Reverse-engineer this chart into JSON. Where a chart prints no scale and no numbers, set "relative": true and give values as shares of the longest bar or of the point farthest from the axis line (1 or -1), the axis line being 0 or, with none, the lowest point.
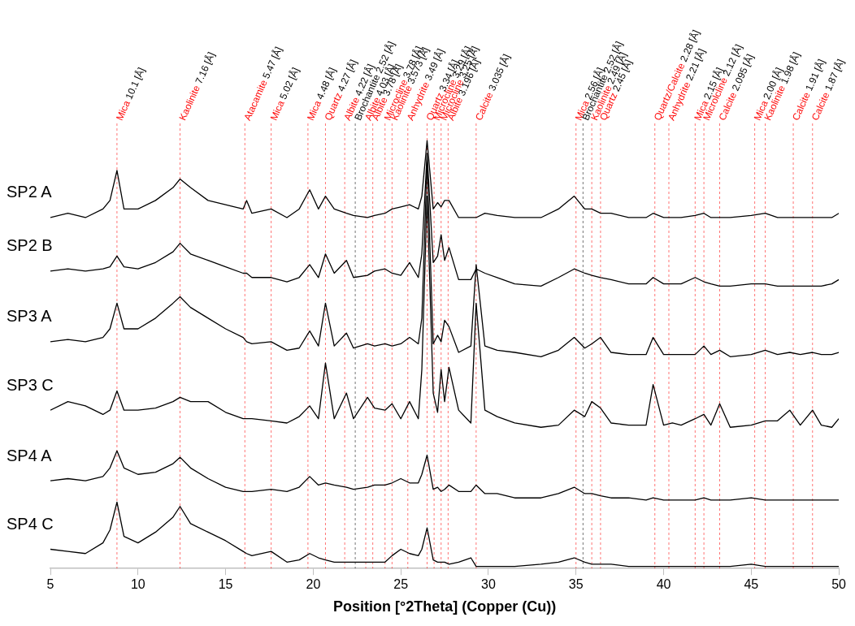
{
  "chart_data": {
    "type": "line",
    "relative": true,
    "xlabel": "Position [°2Theta] (Copper (Cu))",
    "xlim": [
      5,
      50
    ],
    "xticks": [
      5,
      10,
      15,
      20,
      25,
      30,
      35,
      40,
      45,
      50
    ],
    "x": [
      5,
      6,
      7,
      8,
      8.4,
      8.8,
      9.2,
      10,
      11,
      12,
      12.4,
      13,
      14,
      15,
      16,
      16.2,
      16.5,
      17.6,
      18.5,
      19.2,
      19.8,
      20.3,
      20.7,
      21.2,
      21.9,
      22.3,
      23.1,
      23.5,
      24.1,
      24.5,
      25,
      25.5,
      26,
      26.2,
      26.5,
      26.85,
      27.1,
      27.3,
      27.5,
      27.75,
      28.3,
      29,
      29.3,
      29.8,
      30.5,
      31.5,
      33,
      34,
      34.9,
      35.5,
      35.9,
      36.4,
      37,
      38,
      39,
      39.4,
      40,
      40.5,
      41,
      41.8,
      42.3,
      42.7,
      43.2,
      43.8,
      45,
      45.8,
      46.5,
      47.2,
      47.8,
      48.5,
      49,
      49.6,
      50
    ],
    "series": [
      {
        "name": "SP2 A",
        "color": "#000000",
        "values": [
          0.82,
          0.83,
          0.82,
          0.84,
          0.86,
          0.93,
          0.84,
          0.84,
          0.86,
          0.89,
          0.91,
          0.89,
          0.86,
          0.85,
          0.84,
          0.86,
          0.83,
          0.84,
          0.82,
          0.84,
          0.885,
          0.84,
          0.87,
          0.84,
          0.83,
          0.825,
          0.82,
          0.825,
          0.83,
          0.84,
          0.845,
          0.85,
          0.84,
          0.87,
          1,
          0.84,
          0.855,
          0.845,
          0.86,
          0.86,
          0.82,
          0.82,
          0.82,
          0.83,
          0.825,
          0.82,
          0.82,
          0.84,
          0.87,
          0.84,
          0.84,
          0.83,
          0.83,
          0.82,
          0.82,
          0.83,
          0.82,
          0.82,
          0.82,
          0.825,
          0.83,
          0.82,
          0.82,
          0.82,
          0.825,
          0.83,
          0.82,
          0.82,
          0.82,
          0.82,
          0.82,
          0.82,
          0.83
        ]
      },
      {
        "name": "SP2 B",
        "color": "#000000",
        "values": [
          0.695,
          0.7,
          0.695,
          0.7,
          0.705,
          0.73,
          0.705,
          0.7,
          0.715,
          0.74,
          0.76,
          0.735,
          0.72,
          0.705,
          0.69,
          0.69,
          0.68,
          0.68,
          0.67,
          0.68,
          0.71,
          0.68,
          0.735,
          0.69,
          0.72,
          0.68,
          0.685,
          0.695,
          0.7,
          0.69,
          0.685,
          0.715,
          0.68,
          0.735,
          0.97,
          0.715,
          0.73,
          0.78,
          0.72,
          0.75,
          0.675,
          0.675,
          0.7,
          0.69,
          0.68,
          0.665,
          0.66,
          0.68,
          0.7,
          0.69,
          0.685,
          0.68,
          0.675,
          0.665,
          0.665,
          0.68,
          0.665,
          0.665,
          0.665,
          0.68,
          0.67,
          0.665,
          0.66,
          0.66,
          0.665,
          0.665,
          0.66,
          0.66,
          0.66,
          0.66,
          0.66,
          0.665,
          0.675
        ]
      },
      {
        "name": "SP3 A",
        "color": "#000000",
        "values": [
          0.53,
          0.535,
          0.53,
          0.54,
          0.56,
          0.62,
          0.56,
          0.56,
          0.585,
          0.62,
          0.635,
          0.61,
          0.585,
          0.56,
          0.54,
          0.53,
          0.525,
          0.53,
          0.51,
          0.515,
          0.555,
          0.52,
          0.62,
          0.52,
          0.55,
          0.515,
          0.525,
          0.52,
          0.525,
          0.52,
          0.525,
          0.54,
          0.525,
          0.585,
          0.95,
          0.525,
          0.545,
          0.53,
          0.58,
          0.565,
          0.505,
          0.52,
          0.71,
          0.52,
          0.51,
          0.505,
          0.495,
          0.51,
          0.54,
          0.515,
          0.525,
          0.54,
          0.505,
          0.5,
          0.5,
          0.54,
          0.5,
          0.5,
          0.5,
          0.5,
          0.52,
          0.5,
          0.51,
          0.495,
          0.5,
          0.51,
          0.5,
          0.505,
          0.5,
          0.505,
          0.5,
          0.5,
          0.505
        ]
      },
      {
        "name": "SP3 C",
        "color": "#000000",
        "values": [
          0.37,
          0.39,
          0.38,
          0.36,
          0.37,
          0.415,
          0.37,
          0.37,
          0.375,
          0.39,
          0.4,
          0.39,
          0.39,
          0.365,
          0.35,
          0.35,
          0.35,
          0.345,
          0.34,
          0.355,
          0.38,
          0.35,
          0.48,
          0.35,
          0.41,
          0.35,
          0.4,
          0.375,
          0.37,
          0.385,
          0.35,
          0.39,
          0.35,
          0.465,
          0.87,
          0.41,
          0.365,
          0.465,
          0.39,
          0.47,
          0.37,
          0.34,
          0.62,
          0.37,
          0.355,
          0.34,
          0.33,
          0.335,
          0.37,
          0.355,
          0.39,
          0.375,
          0.34,
          0.335,
          0.335,
          0.43,
          0.335,
          0.34,
          0.335,
          0.35,
          0.36,
          0.335,
          0.385,
          0.33,
          0.335,
          0.345,
          0.345,
          0.37,
          0.335,
          0.37,
          0.335,
          0.33,
          0.35
        ]
      },
      {
        "name": "SP4 A",
        "color": "#000000",
        "values": [
          0.205,
          0.21,
          0.205,
          0.215,
          0.235,
          0.275,
          0.235,
          0.22,
          0.225,
          0.245,
          0.26,
          0.235,
          0.21,
          0.19,
          0.18,
          0.18,
          0.18,
          0.185,
          0.18,
          0.19,
          0.215,
          0.195,
          0.2,
          0.195,
          0.19,
          0.185,
          0.19,
          0.195,
          0.195,
          0.2,
          0.21,
          0.2,
          0.2,
          0.22,
          0.265,
          0.185,
          0.19,
          0.18,
          0.185,
          0.195,
          0.18,
          0.18,
          0.195,
          0.175,
          0.175,
          0.165,
          0.165,
          0.175,
          0.19,
          0.175,
          0.175,
          0.17,
          0.165,
          0.165,
          0.16,
          0.165,
          0.16,
          0.16,
          0.16,
          0.16,
          0.165,
          0.16,
          0.16,
          0.16,
          0.165,
          0.16,
          0.16,
          0.16,
          0.16,
          0.16,
          0.16,
          0.16,
          0.16
        ]
      },
      {
        "name": "SP4 C",
        "color": "#000000",
        "values": [
          0.045,
          0.04,
          0.035,
          0.06,
          0.09,
          0.155,
          0.075,
          0.06,
          0.085,
          0.12,
          0.145,
          0.105,
          0.085,
          0.065,
          0.04,
          0.035,
          0.03,
          0.04,
          0.015,
          0.02,
          0.035,
          0.025,
          0.02,
          0.015,
          0.015,
          0.015,
          0.015,
          0.015,
          0.015,
          0.03,
          0.045,
          0.035,
          0.03,
          0.045,
          0.095,
          0.02,
          0.015,
          0.015,
          0.015,
          0.01,
          0.015,
          0.025,
          0.005,
          0.005,
          0.005,
          0.005,
          0.01,
          0.015,
          0.025,
          0.015,
          0.01,
          0.01,
          0.01,
          0.005,
          0.005,
          0.005,
          0.005,
          0.005,
          0.005,
          0.005,
          0.005,
          0.005,
          0.005,
          0.005,
          0.01,
          0.005,
          0.005,
          0.005,
          0.005,
          0.005,
          0.005,
          0.005,
          0.005
        ]
      }
    ],
    "ref_lines": [
      {
        "axis": "x",
        "value": 8.8,
        "label": "Mica 10.1 [Å]",
        "color": "#ff0000",
        "line_style": "dashed"
      },
      {
        "axis": "x",
        "value": 12.4,
        "label": "Kaolinite 7.16 [Å]",
        "color": "#ff0000",
        "line_style": "dashed"
      },
      {
        "axis": "x",
        "value": 16.1,
        "label": "Atacamite 5.47 [Å]",
        "color": "#ff0000",
        "line_style": "dashed"
      },
      {
        "axis": "x",
        "value": 17.6,
        "label": "Mica 5.02 [Å]",
        "color": "#ff0000",
        "line_style": "dashed"
      },
      {
        "axis": "x",
        "value": 19.7,
        "label": "Mica 4.48 [Å]",
        "color": "#ff0000",
        "line_style": "dashed"
      },
      {
        "axis": "x",
        "value": 20.7,
        "label": "Quartz 4.27 [Å]",
        "color": "#ff0000",
        "line_style": "dashed"
      },
      {
        "axis": "x",
        "value": 21.8,
        "label": "Albite 4.22 [Å]",
        "color": "#ff0000",
        "line_style": "dashed"
      },
      {
        "axis": "x",
        "value": 22.4,
        "label": "Brochantite 2.52 [Å]",
        "color": "#000000",
        "line_style": "dashed"
      },
      {
        "axis": "x",
        "value": 23.0,
        "label": "Albite 4.03 [Å]",
        "color": "#ff0000",
        "line_style": "dashed"
      },
      {
        "axis": "x",
        "value": 23.4,
        "label": "Albite 3.78 [Å]",
        "color": "#ff0000",
        "line_style": "dashed"
      },
      {
        "axis": "x",
        "value": 24.1,
        "label": "Microcline 3.78 [Å]",
        "color": "#ff0000",
        "line_style": "dashed"
      },
      {
        "axis": "x",
        "value": 24.5,
        "label": "Kaolinite 3.573 [Å]",
        "color": "#ff0000",
        "line_style": "dashed"
      },
      {
        "axis": "x",
        "value": 25.4,
        "label": "Anhydrite 3.49 [Å]",
        "color": "#ff0000",
        "line_style": "dashed"
      },
      {
        "axis": "x",
        "value": 26.5,
        "label": "Quartz 3.34 [Å]",
        "color": "#ff0000",
        "line_style": "dashed"
      },
      {
        "axis": "x",
        "value": 26.9,
        "label": "Microcline 3.29 [Å]",
        "color": "#ff0000",
        "line_style": "dashed"
      },
      {
        "axis": "x",
        "value": 27.3,
        "label": "Microcline 3.25 [Å]",
        "color": "#ff0000",
        "line_style": "dashed"
      },
      {
        "axis": "x",
        "value": 27.7,
        "label": "Albite 3.196 [Å]",
        "color": "#ff0000",
        "line_style": "dashed"
      },
      {
        "axis": "x",
        "value": 29.3,
        "label": "Calcite 3.035 [Å]",
        "color": "#ff0000",
        "line_style": "dashed"
      },
      {
        "axis": "x",
        "value": 35.0,
        "label": "Mica 2.56 [Å]",
        "color": "#ff0000",
        "line_style": "dashed"
      },
      {
        "axis": "x",
        "value": 35.4,
        "label": "Brochantite 2.52 [Å]",
        "color": "#000000",
        "line_style": "dashed"
      },
      {
        "axis": "x",
        "value": 35.9,
        "label": "Kaolinite 2.49 [Å]",
        "color": "#ff0000",
        "line_style": "dashed"
      },
      {
        "axis": "x",
        "value": 36.4,
        "label": "Quartz 2.45 [Å]",
        "color": "#ff0000",
        "line_style": "dashed"
      },
      {
        "axis": "x",
        "value": 39.5,
        "label": "Quartz/Calcite 2.28 [Å]",
        "color": "#ff0000",
        "line_style": "dashed"
      },
      {
        "axis": "x",
        "value": 40.3,
        "label": "Anhydrite 2.21 [Å]",
        "color": "#ff0000",
        "line_style": "dashed"
      },
      {
        "axis": "x",
        "value": 41.8,
        "label": "Mica 2.15 [Å]",
        "color": "#ff0000",
        "line_style": "dashed"
      },
      {
        "axis": "x",
        "value": 42.3,
        "label": "Microlcline 2.12 [Å]",
        "color": "#ff0000",
        "line_style": "dashed"
      },
      {
        "axis": "x",
        "value": 43.2,
        "label": "Calcite 2.095 [Å]",
        "color": "#ff0000",
        "line_style": "dashed"
      },
      {
        "axis": "x",
        "value": 45.2,
        "label": "Mica 2.00 [Å]",
        "color": "#ff0000",
        "line_style": "dashed"
      },
      {
        "axis": "x",
        "value": 45.8,
        "label": "Kaolinite 1.98 [Å]",
        "color": "#ff0000",
        "line_style": "dashed"
      },
      {
        "axis": "x",
        "value": 47.4,
        "label": "Calcite 1.91 [Å]",
        "color": "#ff0000",
        "line_style": "dashed"
      },
      {
        "axis": "x",
        "value": 48.5,
        "label": "Calcite 1.87 [Å]",
        "color": "#ff0000",
        "line_style": "dashed"
      }
    ]
  }
}
